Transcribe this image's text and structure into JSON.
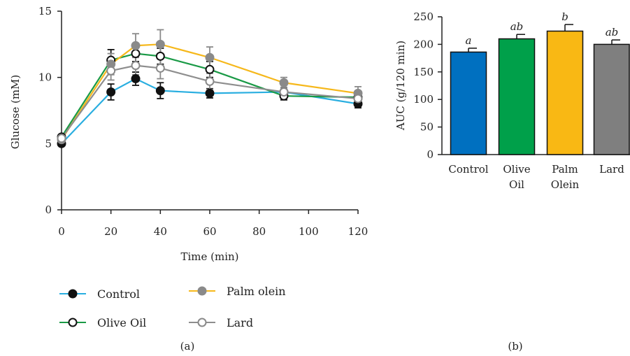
{
  "chart_data": [
    {
      "type": "line",
      "panel_label": "(a)",
      "xlabel": "Time (min)",
      "ylabel": "Glucose (mM)",
      "xlim": [
        0,
        120
      ],
      "ylim": [
        0,
        15
      ],
      "x_ticks": [
        "0",
        "20",
        "40",
        "60",
        "80",
        "100",
        "120"
      ],
      "y_ticks": [
        "0",
        "5",
        "10",
        "15"
      ],
      "x": [
        0,
        20,
        30,
        40,
        60,
        90,
        120
      ],
      "series": [
        {
          "name": "Control",
          "color": "#29aee0",
          "marker": "filled-dark",
          "values": [
            5.0,
            8.9,
            9.9,
            9.0,
            8.8,
            8.9,
            8.0
          ],
          "errors": [
            0.15,
            0.6,
            0.5,
            0.6,
            0.35,
            0.35,
            0.3
          ]
        },
        {
          "name": "Olive Oil",
          "color": "#1a9a46",
          "marker": "open",
          "values": [
            5.5,
            11.3,
            11.8,
            11.6,
            10.6,
            8.6,
            8.5
          ],
          "errors": [
            0.15,
            0.8,
            0.6,
            0.6,
            0.6,
            0.3,
            0.3
          ]
        },
        {
          "name": "Palm olein",
          "color": "#f6b81b",
          "marker": "filled-gray",
          "values": [
            5.3,
            11.0,
            12.4,
            12.5,
            11.5,
            9.6,
            8.8
          ],
          "errors": [
            0.15,
            0.8,
            0.9,
            1.1,
            0.8,
            0.4,
            0.5
          ]
        },
        {
          "name": "Lard",
          "color": "#8e8e8e",
          "marker": "open-gray",
          "values": [
            5.4,
            10.5,
            10.9,
            10.7,
            9.7,
            8.9,
            8.4
          ],
          "errors": [
            0.15,
            0.7,
            0.7,
            0.8,
            0.6,
            0.35,
            0.35
          ]
        }
      ]
    },
    {
      "type": "bar",
      "panel_label": "(b)",
      "ylabel": "AUC (g/120 min)",
      "ylim": [
        0,
        250
      ],
      "y_ticks": [
        "0",
        "50",
        "100",
        "150",
        "200",
        "250"
      ],
      "categories": [
        [
          "Control"
        ],
        [
          "Olive",
          "Oil"
        ],
        [
          "Palm",
          "Olein"
        ],
        [
          "Lard"
        ]
      ],
      "values": [
        186,
        210,
        224,
        200
      ],
      "errors": [
        7,
        8,
        12,
        8
      ],
      "colors": [
        "#0070c0",
        "#00a04a",
        "#f9b814",
        "#7f7f7f"
      ],
      "significance": [
        "a",
        "ab",
        "b",
        "ab"
      ]
    }
  ]
}
